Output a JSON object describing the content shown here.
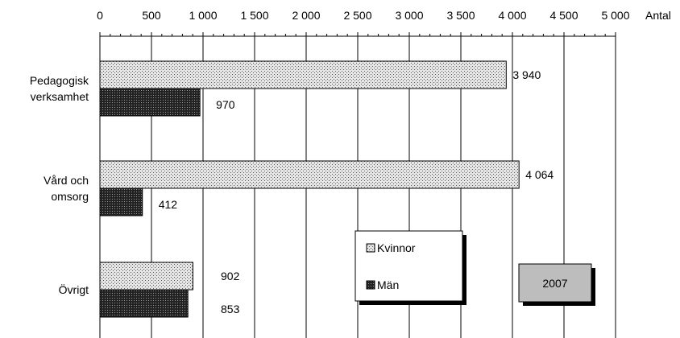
{
  "chart_data": {
    "type": "bar",
    "orientation": "horizontal",
    "categories": [
      "Pedagogisk verksamhet",
      "Vård och omsorg",
      "Övrigt"
    ],
    "category_label_lines": [
      [
        "Pedagogisk",
        "verksamhet"
      ],
      [
        "Vård och",
        "omsorg"
      ],
      [
        "Övrigt"
      ]
    ],
    "series": [
      {
        "name": "Kvinnor",
        "values": [
          3940,
          4064,
          902
        ],
        "value_labels": [
          "3 940",
          "4 064",
          "902"
        ],
        "pattern": "light-dots"
      },
      {
        "name": "Män",
        "values": [
          970,
          412,
          853
        ],
        "value_labels": [
          "970",
          "412",
          "853"
        ],
        "pattern": "dark-dots"
      }
    ],
    "xlim": [
      0,
      5000
    ],
    "x_ticks": [
      0,
      500,
      1000,
      1500,
      2000,
      2500,
      3000,
      3500,
      4000,
      4500,
      5000
    ],
    "x_tick_labels": [
      "0",
      "500",
      "1 000",
      "1 500",
      "2 000",
      "2 500",
      "3 000",
      "3 500",
      "4 000",
      "4 500",
      "5 000"
    ],
    "xlabel": "Antal",
    "axis_position": "top",
    "grid": true,
    "legend": {
      "placement": "bottom-center",
      "entries": [
        "Kvinnor",
        "Män"
      ]
    },
    "annotation_box": "2007"
  }
}
